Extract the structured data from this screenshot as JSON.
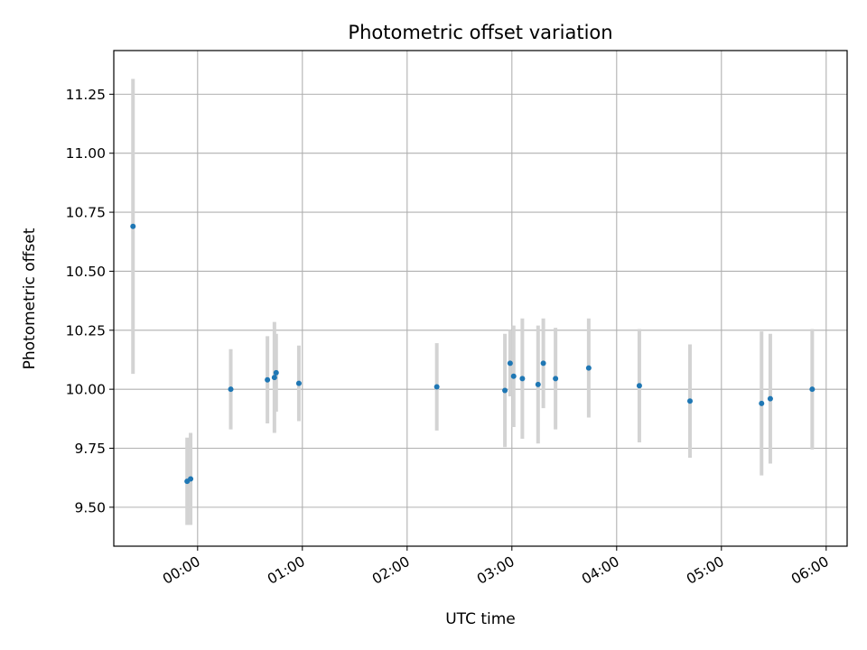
{
  "chart_data": {
    "type": "scatter",
    "title": "Photometric offset variation",
    "xlabel": "UTC time",
    "ylabel": "Photometric offset",
    "x_unit": "UTC time (HH:MM)",
    "xlim": [
      "-00:48",
      "06:12"
    ],
    "ylim": [
      9.335,
      11.435
    ],
    "x_ticks": [
      "00:00",
      "01:00",
      "02:00",
      "03:00",
      "04:00",
      "05:00",
      "06:00"
    ],
    "y_ticks": [
      "9.50",
      "9.75",
      "10.00",
      "10.25",
      "10.50",
      "10.75",
      "11.00",
      "11.25"
    ],
    "grid": true,
    "marker_color": "#1f77b4",
    "errorbar_color": "#d3d3d3",
    "series": [
      {
        "points": [
          {
            "x": "-00:37",
            "y": 10.69,
            "yerr": 0.625
          },
          {
            "x": "-00:06",
            "y": 9.61,
            "yerr": 0.185
          },
          {
            "x": "-00:04",
            "y": 9.62,
            "yerr": 0.195
          },
          {
            "x": "00:19",
            "y": 10.0,
            "yerr": 0.17
          },
          {
            "x": "00:40",
            "y": 10.04,
            "yerr": 0.185
          },
          {
            "x": "00:44",
            "y": 10.05,
            "yerr": 0.235
          },
          {
            "x": "00:45",
            "y": 10.07,
            "yerr": 0.165
          },
          {
            "x": "00:58",
            "y": 10.025,
            "yerr": 0.16
          },
          {
            "x": "02:17",
            "y": 10.01,
            "yerr": 0.185
          },
          {
            "x": "02:56",
            "y": 9.995,
            "yerr": 0.24
          },
          {
            "x": "02:59",
            "y": 10.11,
            "yerr": 0.14
          },
          {
            "x": "03:01",
            "y": 10.055,
            "yerr": 0.215
          },
          {
            "x": "03:06",
            "y": 10.045,
            "yerr": 0.255
          },
          {
            "x": "03:15",
            "y": 10.02,
            "yerr": 0.25
          },
          {
            "x": "03:18",
            "y": 10.11,
            "yerr": 0.19
          },
          {
            "x": "03:25",
            "y": 10.045,
            "yerr": 0.215
          },
          {
            "x": "03:44",
            "y": 10.09,
            "yerr": 0.21
          },
          {
            "x": "04:13",
            "y": 10.015,
            "yerr": 0.24
          },
          {
            "x": "04:42",
            "y": 9.95,
            "yerr": 0.24
          },
          {
            "x": "05:23",
            "y": 9.94,
            "yerr": 0.305
          },
          {
            "x": "05:28",
            "y": 9.96,
            "yerr": 0.275
          },
          {
            "x": "05:52",
            "y": 10.0,
            "yerr": 0.255
          }
        ]
      }
    ]
  }
}
